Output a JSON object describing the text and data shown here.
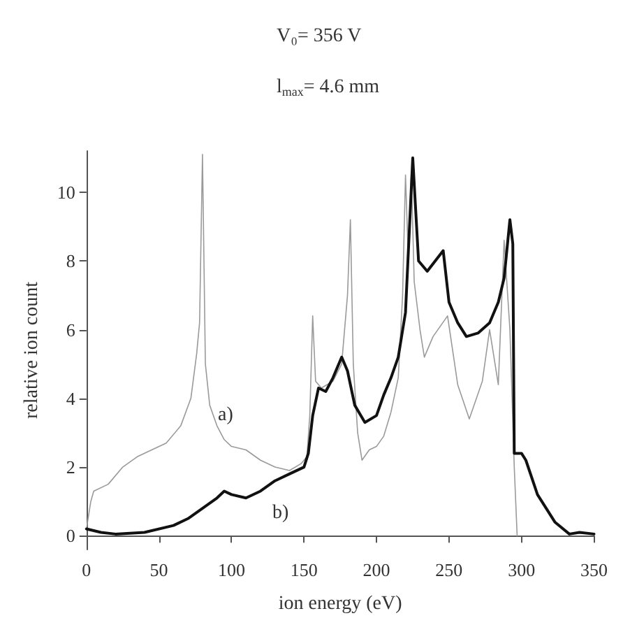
{
  "chart_data": {
    "type": "line",
    "title": "V₀= 356 V",
    "subtitle": "l$_{max}$= 4.6 mm",
    "xlabel": "ion energy (eV)",
    "ylabel": "relative ion count",
    "xlim": [
      0,
      350
    ],
    "xticks": [
      0,
      50,
      100,
      150,
      200,
      250,
      300,
      350
    ],
    "ylim": [
      -0.4,
      11.2
    ],
    "yticks": [
      0,
      2,
      4,
      6,
      8,
      10
    ],
    "grid": false,
    "marker": "none",
    "line_style": "solid",
    "annotations": [
      "a)",
      "b)"
    ],
    "series": [
      {
        "color": "#9a9a9a",
        "x": [
          0,
          3,
          5,
          15,
          25,
          35,
          45,
          55,
          65,
          72,
          76,
          78,
          80,
          82,
          85,
          90,
          95,
          100,
          110,
          120,
          130,
          140,
          148,
          152,
          154,
          156,
          158,
          162,
          170,
          176,
          180,
          182,
          184,
          187,
          190,
          195,
          200,
          205,
          210,
          215,
          218,
          220,
          222,
          224,
          226,
          230,
          233,
          239,
          249,
          256,
          264,
          273,
          278,
          284,
          288,
          292,
          295,
          297
        ],
        "values": [
          0.2,
          1.0,
          1.3,
          1.5,
          2.0,
          2.3,
          2.5,
          2.7,
          3.2,
          4.0,
          5.3,
          6.2,
          11.1,
          5.0,
          3.8,
          3.2,
          2.8,
          2.6,
          2.5,
          2.2,
          2.0,
          1.9,
          2.1,
          2.3,
          3.5,
          6.4,
          4.5,
          4.3,
          4.5,
          5.0,
          7.0,
          9.2,
          5.0,
          3.0,
          2.2,
          2.5,
          2.6,
          2.9,
          3.6,
          4.6,
          7.0,
          10.5,
          8.0,
          10.6,
          7.4,
          6.0,
          5.2,
          5.8,
          6.4,
          4.4,
          3.4,
          4.5,
          6.0,
          4.4,
          8.6,
          6.0,
          2.0,
          0
        ]
      },
      {
        "color": "#111111",
        "x": [
          0,
          10,
          20,
          40,
          60,
          70,
          80,
          90,
          95,
          100,
          110,
          120,
          130,
          140,
          150,
          153,
          156,
          160,
          165,
          170,
          176,
          180,
          185,
          192,
          200,
          205,
          210,
          215,
          220,
          225,
          229,
          235,
          246,
          250,
          256,
          262,
          270,
          278,
          284,
          288,
          292,
          294,
          295,
          300,
          303,
          311,
          323,
          333,
          340,
          350
        ],
        "values": [
          0.2,
          0.1,
          0.05,
          0.1,
          0.3,
          0.5,
          0.8,
          1.1,
          1.3,
          1.2,
          1.1,
          1.3,
          1.6,
          1.8,
          2.0,
          2.4,
          3.5,
          4.3,
          4.2,
          4.6,
          5.2,
          4.8,
          3.8,
          3.3,
          3.5,
          4.1,
          4.6,
          5.2,
          6.5,
          11.0,
          8.0,
          7.7,
          8.3,
          6.8,
          6.2,
          5.8,
          5.9,
          6.2,
          6.8,
          7.5,
          9.2,
          8.5,
          2.4,
          2.4,
          2.2,
          1.2,
          0.4,
          0.05,
          0.1,
          0.05
        ]
      }
    ]
  }
}
